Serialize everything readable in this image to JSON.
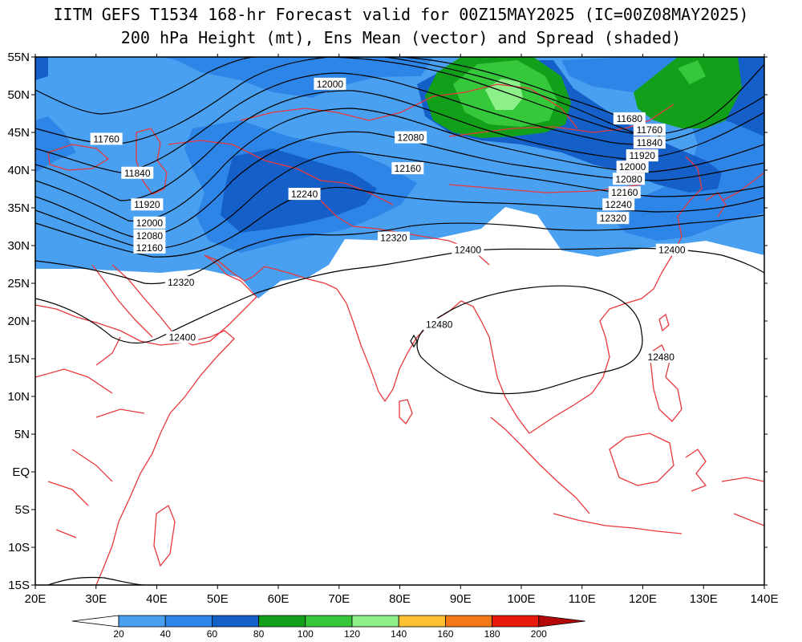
{
  "title": {
    "line1": "IITM GEFS T1534 168-hr Forecast valid for 00Z15MAY2025 (IC=00Z08MAY2025)",
    "line2": "200 hPa Height (mt), Ens Mean (vector) and Spread (shaded)"
  },
  "colors": {
    "coastline": "#e8383c",
    "contour": "#000000",
    "shade_20_40": "#4aa0f0",
    "shade_40_60": "#2d85e8",
    "shade_60_80": "#1560c8",
    "shade_80_100": "#12a01a",
    "shade_100_120": "#35c83a",
    "shade_120_140": "#8ef08a"
  },
  "map": {
    "lon_range": [
      20,
      140
    ],
    "lat_range": [
      -15,
      55
    ],
    "lon_ticks": [
      "20E",
      "30E",
      "40E",
      "50E",
      "60E",
      "70E",
      "80E",
      "90E",
      "100E",
      "110E",
      "120E",
      "130E",
      "140E"
    ],
    "lat_ticks": [
      "55N",
      "50N",
      "45N",
      "40N",
      "35N",
      "30N",
      "25N",
      "20N",
      "15N",
      "10N",
      "5N",
      "EQ",
      "5S",
      "10S",
      "15S"
    ]
  },
  "contour_labels": [
    {
      "text": "12000",
      "lon": 68.5,
      "lat": 51.4
    },
    {
      "text": "12080",
      "lon": 81.8,
      "lat": 44.3
    },
    {
      "text": "12160",
      "lon": 81.3,
      "lat": 40.2
    },
    {
      "text": "12240",
      "lon": 64.3,
      "lat": 36.8
    },
    {
      "text": "12320",
      "lon": 79.0,
      "lat": 31.0
    },
    {
      "text": "12400",
      "lon": 91.2,
      "lat": 29.4
    },
    {
      "text": "12400",
      "lon": 124.8,
      "lat": 29.4
    },
    {
      "text": "12480",
      "lon": 86.5,
      "lat": 19.5
    },
    {
      "text": "12480",
      "lon": 123.0,
      "lat": 15.2
    },
    {
      "text": "12320",
      "lon": 44.0,
      "lat": 25.1
    },
    {
      "text": "12400",
      "lon": 44.2,
      "lat": 17.8
    },
    {
      "text": "11760",
      "lon": 31.7,
      "lat": 44.1
    },
    {
      "text": "11840",
      "lon": 36.8,
      "lat": 39.6
    },
    {
      "text": "11920",
      "lon": 38.4,
      "lat": 35.4
    },
    {
      "text": "12000",
      "lon": 38.8,
      "lat": 33.0
    },
    {
      "text": "12080",
      "lon": 38.8,
      "lat": 31.3
    },
    {
      "text": "12160",
      "lon": 38.8,
      "lat": 29.7
    },
    {
      "text": "11680",
      "lon": 117.8,
      "lat": 46.8
    },
    {
      "text": "11760",
      "lon": 121.1,
      "lat": 45.3
    },
    {
      "text": "11840",
      "lon": 121.1,
      "lat": 43.6
    },
    {
      "text": "11920",
      "lon": 119.9,
      "lat": 41.9
    },
    {
      "text": "12000",
      "lon": 118.3,
      "lat": 40.4
    },
    {
      "text": "12080",
      "lon": 117.7,
      "lat": 38.8
    },
    {
      "text": "12160",
      "lon": 117.0,
      "lat": 37.0
    },
    {
      "text": "12240",
      "lon": 116.0,
      "lat": 35.4
    },
    {
      "text": "12320",
      "lon": 115.1,
      "lat": 33.6
    }
  ],
  "colorbar": {
    "labels": [
      "20",
      "40",
      "60",
      "80",
      "100",
      "120",
      "140",
      "160",
      "180",
      "200"
    ],
    "colors": [
      "#ffffff",
      "#4aa0f0",
      "#2d85e8",
      "#1560c8",
      "#12a01a",
      "#35c83a",
      "#8ef08a",
      "#fdc030",
      "#f57818",
      "#e8180a",
      "#b40808"
    ]
  }
}
